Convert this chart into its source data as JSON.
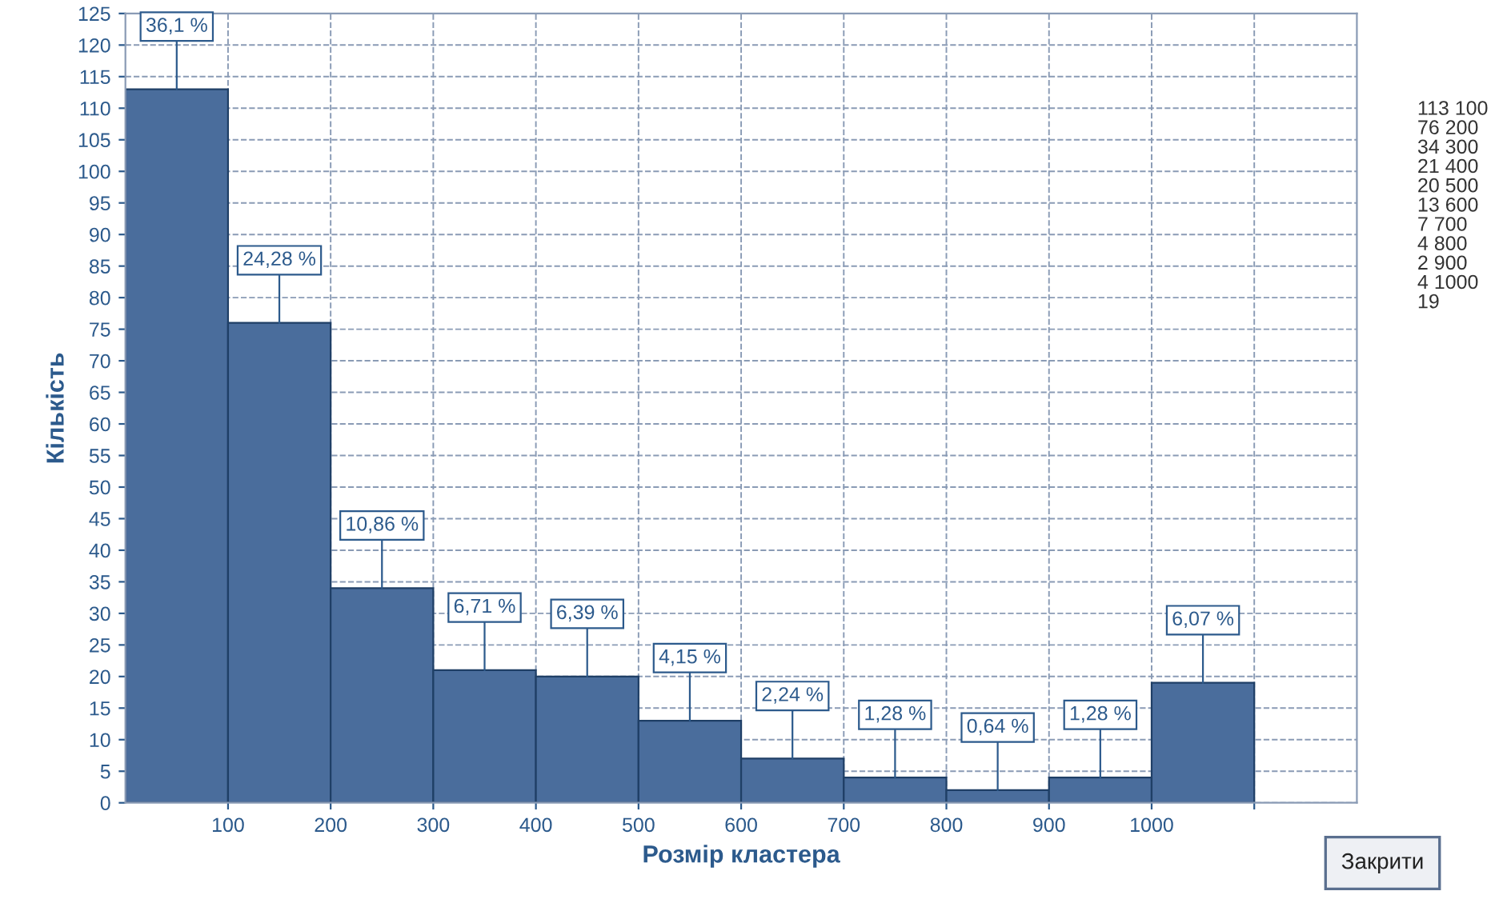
{
  "chart_data": {
    "type": "histogram",
    "xlabel": "Розмір кластера",
    "ylabel": "Кількість",
    "bins": [
      0,
      100,
      200,
      300,
      400,
      500,
      600,
      700,
      800,
      900,
      1000,
      1100
    ],
    "values": [
      113,
      76,
      34,
      21,
      20,
      13,
      7,
      4,
      2,
      4,
      19
    ],
    "color": "#4a6d9c",
    "xlim": [
      0,
      1200
    ],
    "xticks": [
      100,
      200,
      300,
      400,
      500,
      600,
      700,
      800,
      900,
      1000,
      {
        "value": 1100,
        "label": null
      }
    ],
    "ylim": [
      0,
      125
    ],
    "yticks": [
      0,
      5,
      10,
      15,
      20,
      25,
      30,
      35,
      40,
      45,
      50,
      55,
      60,
      65,
      70,
      75,
      80,
      85,
      90,
      95,
      100,
      105,
      110,
      115,
      120,
      125
    ],
    "grid": true,
    "line_style": "dashed",
    "annotations": [
      {
        "text": "36,1 %",
        "x": 50,
        "y": 113
      },
      {
        "text": "24,28 %",
        "x": 150,
        "y": 76
      },
      {
        "text": "10,86 %",
        "x": 250,
        "y": 34
      },
      {
        "text": "6,71 %",
        "x": 350,
        "y": 21
      },
      {
        "text": "6,39 %",
        "x": 450,
        "y": 20
      },
      {
        "text": "4,15 %",
        "x": 550,
        "y": 13
      },
      {
        "text": "2,24 %",
        "x": 650,
        "y": 7
      },
      {
        "text": "1,28 %",
        "x": 750,
        "y": 4
      },
      {
        "text": "0,64 %",
        "x": 850,
        "y": 2
      },
      {
        "text": "1,28 %",
        "x": 950,
        "y": 4
      },
      {
        "text": "6,07 %",
        "x": 1050,
        "y": 19
      },
      "113 100",
      "76 200",
      "34 300",
      "21 400",
      "20 500",
      "13 600",
      "7 700",
      "4 800",
      "2 900",
      "4 1000",
      "19",
      "Закрити"
    ]
  }
}
